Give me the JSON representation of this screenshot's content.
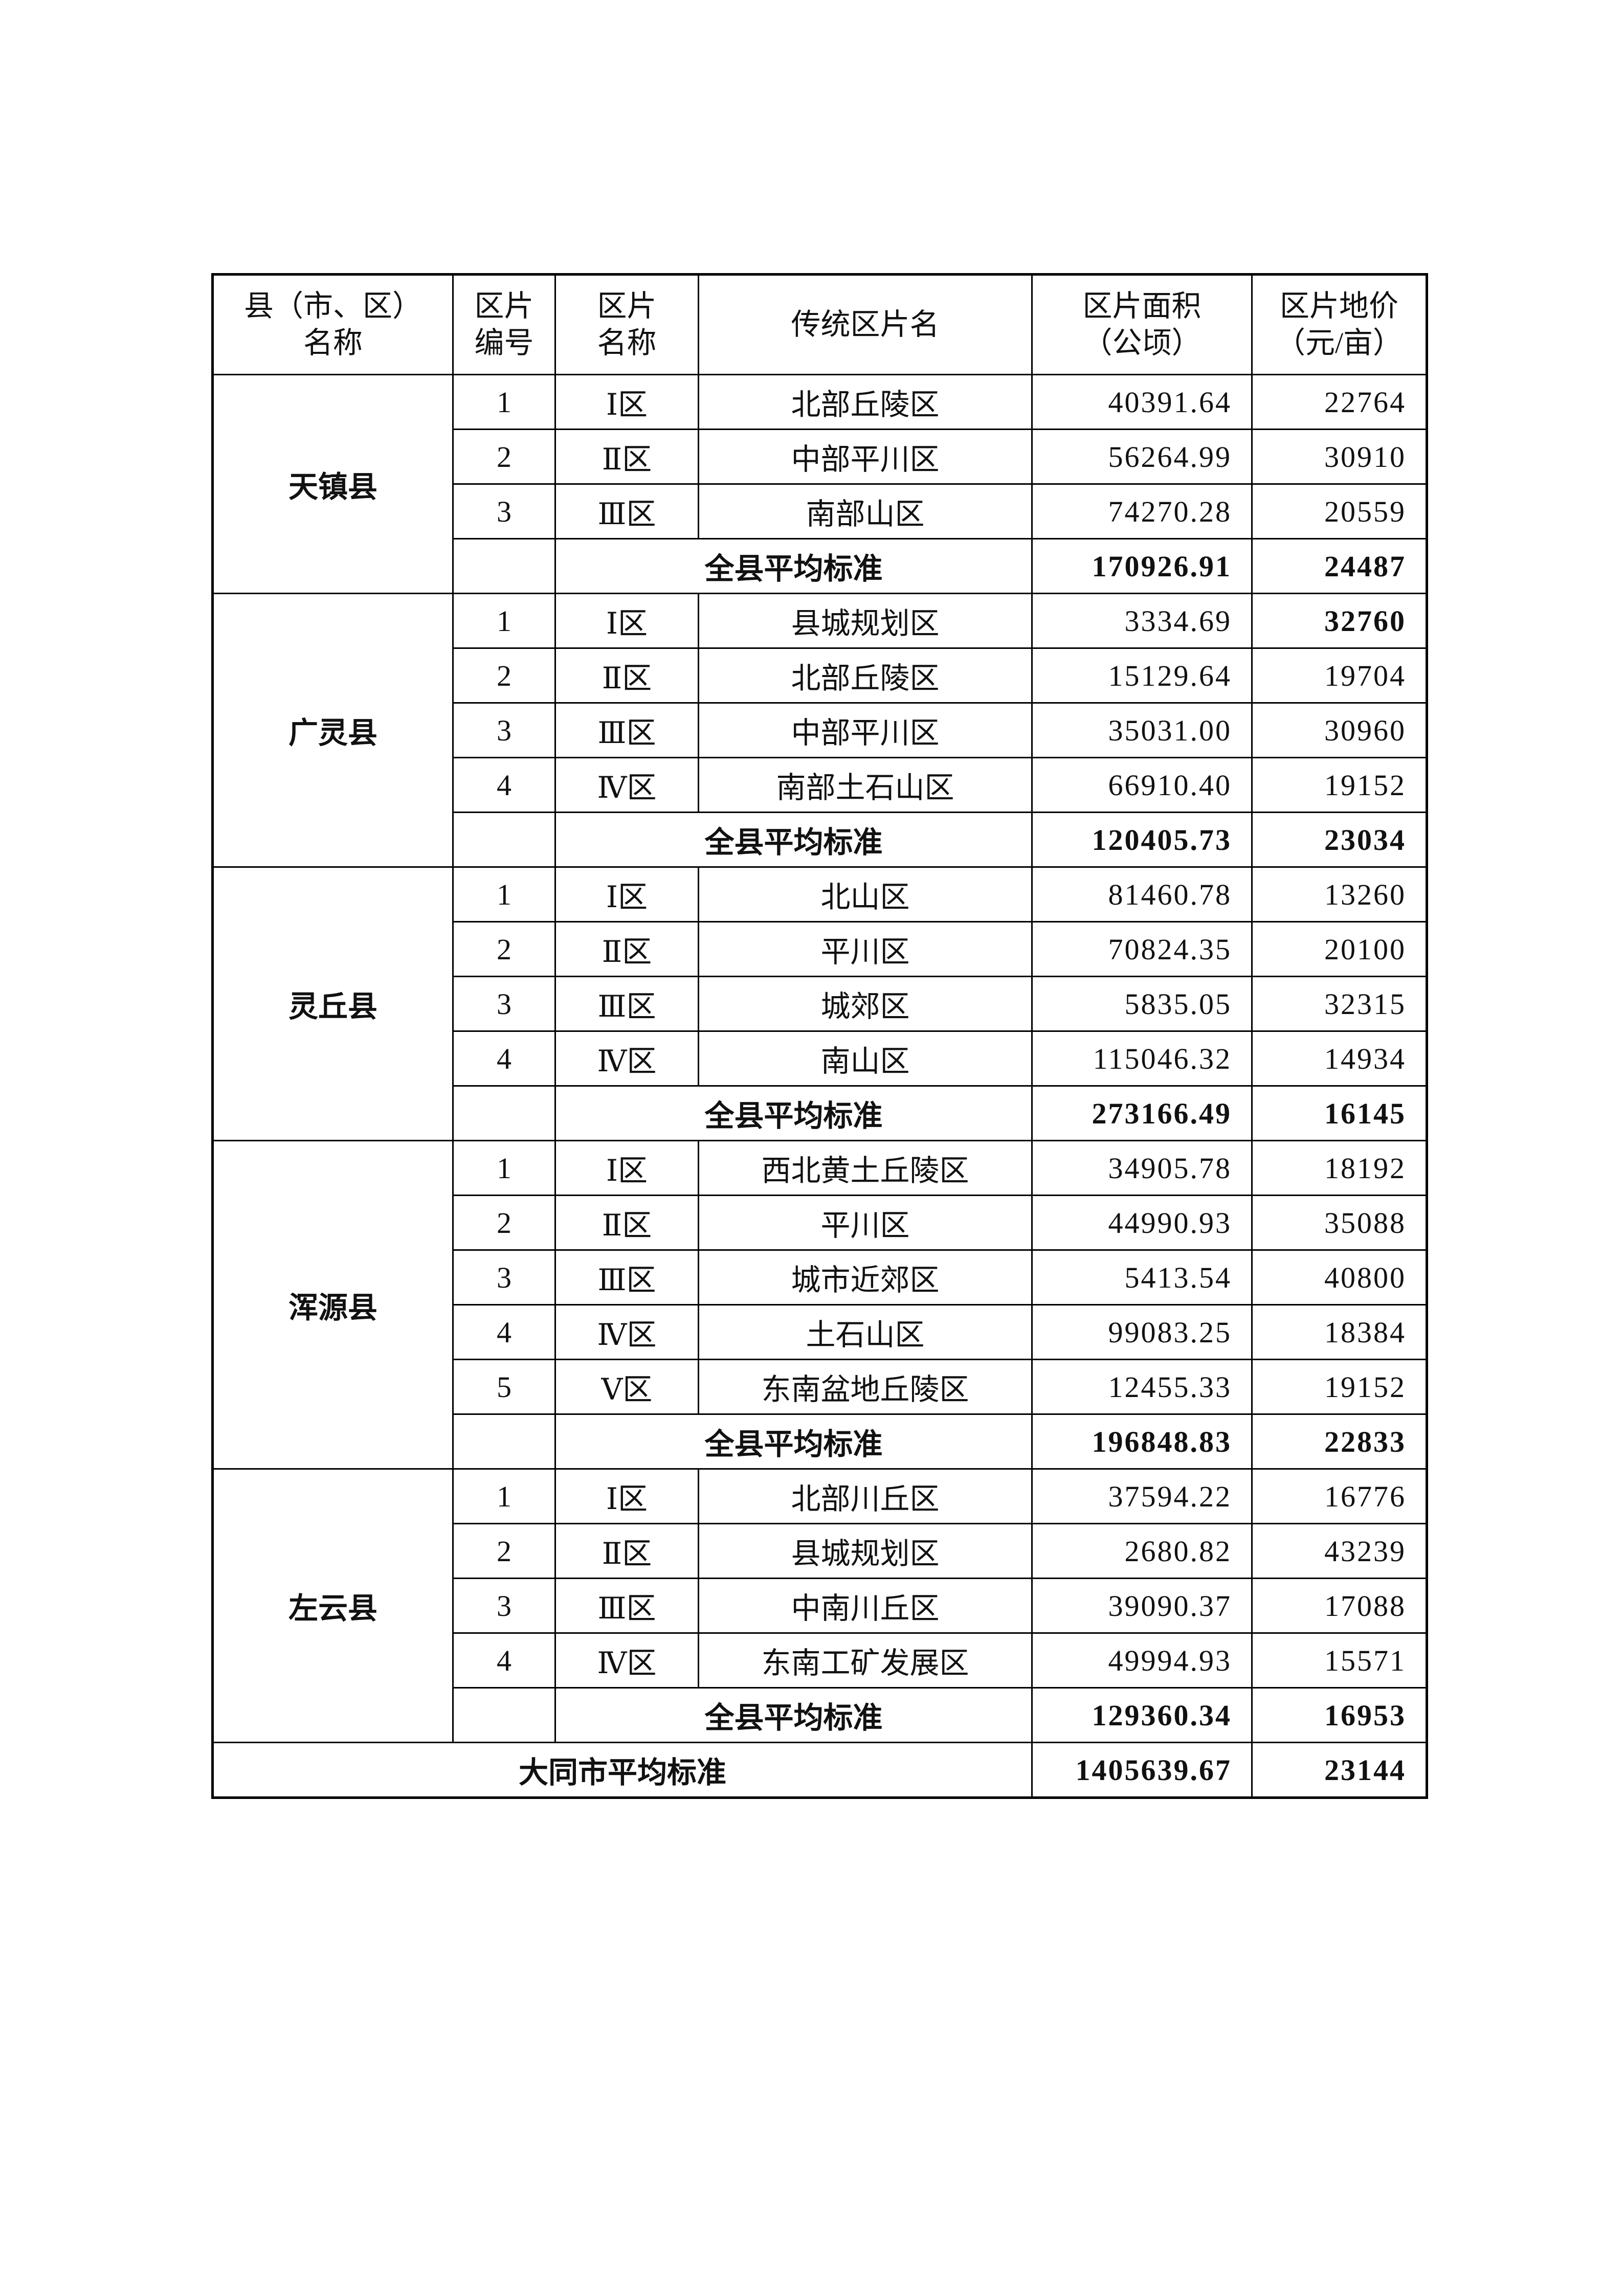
{
  "header": [
    "县（市、区）\n名称",
    "区片\n编号",
    "区片\n名称",
    "传统区片名",
    "区片面积\n（公顷）",
    "区片地价\n（元/亩）"
  ],
  "avg_label": "全县平均标准",
  "counties": [
    {
      "name": "天镇县",
      "rows": [
        {
          "no": "1",
          "zone": "Ⅰ区",
          "name": "北部丘陵区",
          "area": "40391.64",
          "price": "22764"
        },
        {
          "no": "2",
          "zone": "Ⅱ区",
          "name": "中部平川区",
          "area": "56264.99",
          "price": "30910"
        },
        {
          "no": "3",
          "zone": "Ⅲ区",
          "name": "南部山区",
          "area": "74270.28",
          "price": "20559"
        }
      ],
      "avg_area": "170926.91",
      "avg_price": "24487"
    },
    {
      "name": "广灵县",
      "rows": [
        {
          "no": "1",
          "zone": "Ⅰ区",
          "name": "县城规划区",
          "area": "3334.69",
          "price": "32760",
          "price_bold": true
        },
        {
          "no": "2",
          "zone": "Ⅱ区",
          "name": "北部丘陵区",
          "area": "15129.64",
          "price": "19704"
        },
        {
          "no": "3",
          "zone": "Ⅲ区",
          "name": "中部平川区",
          "area": "35031.00",
          "price": "30960"
        },
        {
          "no": "4",
          "zone": "Ⅳ区",
          "name": "南部土石山区",
          "area": "66910.40",
          "price": "19152"
        }
      ],
      "avg_area": "120405.73",
      "avg_price": "23034"
    },
    {
      "name": "灵丘县",
      "rows": [
        {
          "no": "1",
          "zone": "Ⅰ区",
          "name": "北山区",
          "area": "81460.78",
          "price": "13260"
        },
        {
          "no": "2",
          "zone": "Ⅱ区",
          "name": "平川区",
          "area": "70824.35",
          "price": "20100"
        },
        {
          "no": "3",
          "zone": "Ⅲ区",
          "name": "城郊区",
          "area": "5835.05",
          "price": "32315"
        },
        {
          "no": "4",
          "zone": "Ⅳ区",
          "name": "南山区",
          "area": "115046.32",
          "price": "14934"
        }
      ],
      "avg_area": "273166.49",
      "avg_price": "16145"
    },
    {
      "name": "浑源县",
      "rows": [
        {
          "no": "1",
          "zone": "Ⅰ区",
          "name": "西北黄土丘陵区",
          "area": "34905.78",
          "price": "18192"
        },
        {
          "no": "2",
          "zone": "Ⅱ区",
          "name": "平川区",
          "area": "44990.93",
          "price": "35088"
        },
        {
          "no": "3",
          "zone": "Ⅲ区",
          "name": "城市近郊区",
          "area": "5413.54",
          "price": "40800"
        },
        {
          "no": "4",
          "zone": "Ⅳ区",
          "name": "土石山区",
          "area": "99083.25",
          "price": "18384"
        },
        {
          "no": "5",
          "zone": "Ⅴ区",
          "name": "东南盆地丘陵区",
          "area": "12455.33",
          "price": "19152"
        }
      ],
      "avg_area": "196848.83",
      "avg_price": "22833"
    },
    {
      "name": "左云县",
      "rows": [
        {
          "no": "1",
          "zone": "Ⅰ区",
          "name": "北部川丘区",
          "area": "37594.22",
          "price": "16776"
        },
        {
          "no": "2",
          "zone": "Ⅱ区",
          "name": "县城规划区",
          "area": "2680.82",
          "price": "43239"
        },
        {
          "no": "3",
          "zone": "Ⅲ区",
          "name": "中南川丘区",
          "area": "39090.37",
          "price": "17088"
        },
        {
          "no": "4",
          "zone": "Ⅳ区",
          "name": "东南工矿发展区",
          "area": "49994.93",
          "price": "15571"
        }
      ],
      "avg_area": "129360.34",
      "avg_price": "16953"
    }
  ],
  "city_total": {
    "label": "大同市平均标准",
    "area": "1405639.67",
    "price": "23144"
  }
}
